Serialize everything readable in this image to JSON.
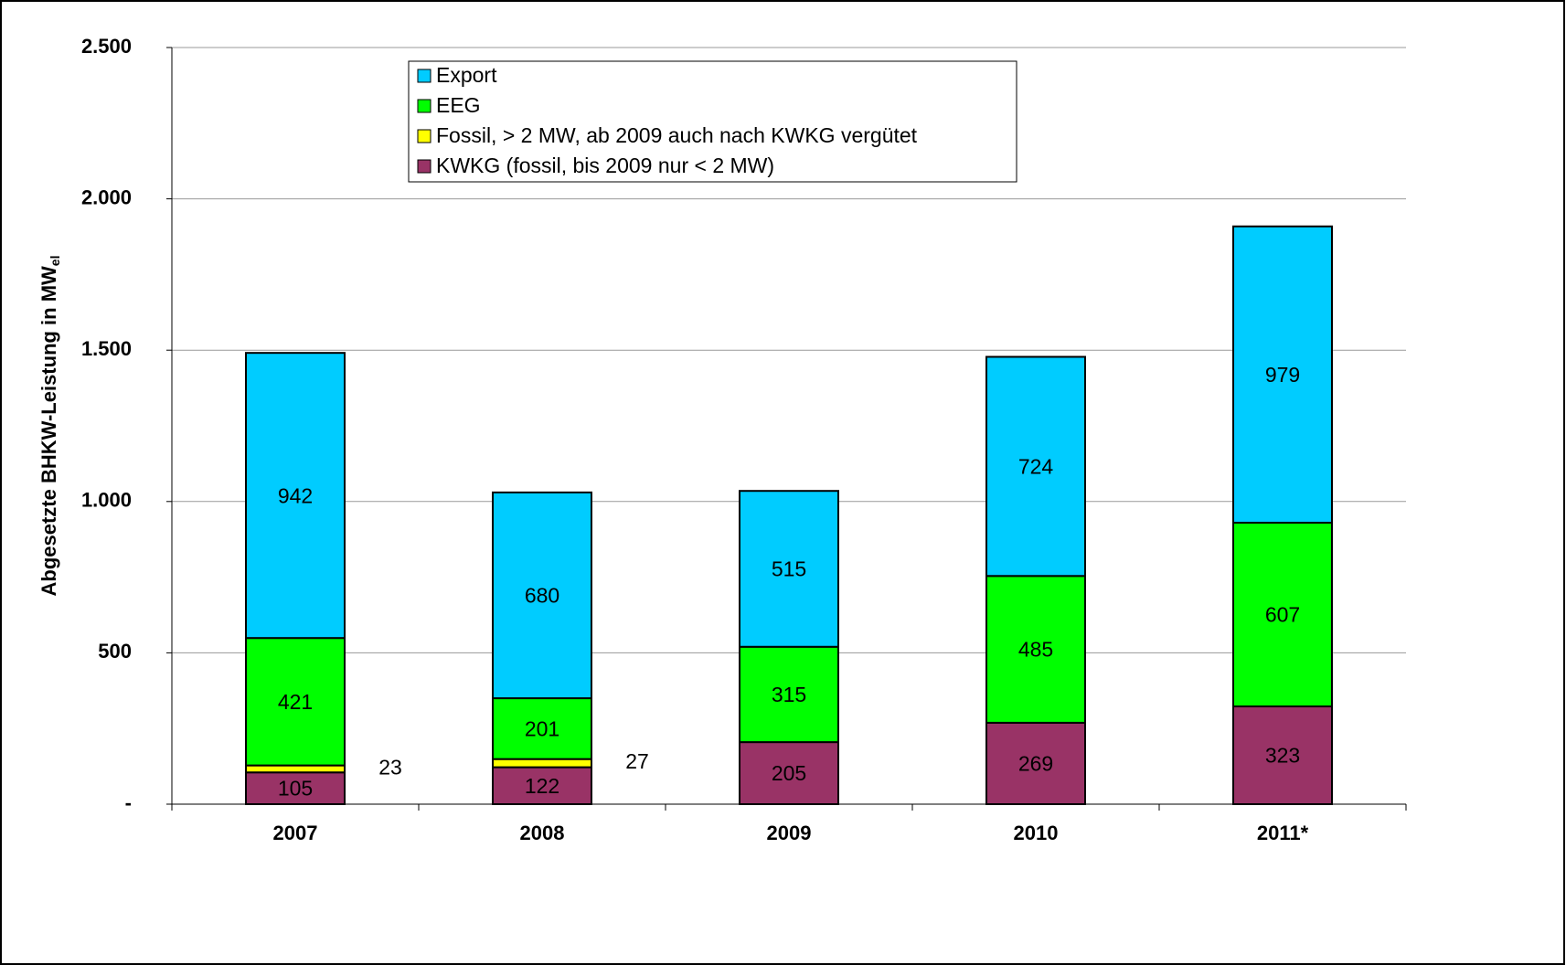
{
  "chart_data": {
    "type": "stacked_bar",
    "y_label": "Abgesetzte BHKW-Leistung in MW",
    "y_label_sub": "el",
    "categories": [
      "2007",
      "2008",
      "2009",
      "2010",
      "2011*"
    ],
    "series": [
      {
        "name": "KWKG (fossil, bis 2009 nur < 2 MW)",
        "color": "#993366",
        "values": [
          105,
          122,
          205,
          269,
          323
        ]
      },
      {
        "name": "Fossil, > 2 MW, ab 2009 auch nach KWKG vergütet",
        "color": "#ffff00",
        "values": [
          23,
          27,
          0,
          0,
          0
        ],
        "value_labels": [
          "23",
          "27",
          "-",
          null,
          "-"
        ]
      },
      {
        "name": "EEG",
        "color": "#00ff00",
        "values": [
          421,
          201,
          315,
          485,
          607
        ]
      },
      {
        "name": "Export",
        "color": "#00ccff",
        "values": [
          942,
          680,
          515,
          724,
          979
        ]
      }
    ],
    "ylim": [
      0,
      2500
    ],
    "yticks": [
      {
        "value": 0,
        "label": "-"
      },
      500,
      {
        "value": 1000,
        "label": "1.000"
      },
      {
        "value": 1500,
        "label": "1.500"
      },
      {
        "value": 2000,
        "label": "2.000"
      },
      {
        "value": 2500,
        "label": "2.500"
      }
    ],
    "grid": true,
    "legend": "top"
  }
}
